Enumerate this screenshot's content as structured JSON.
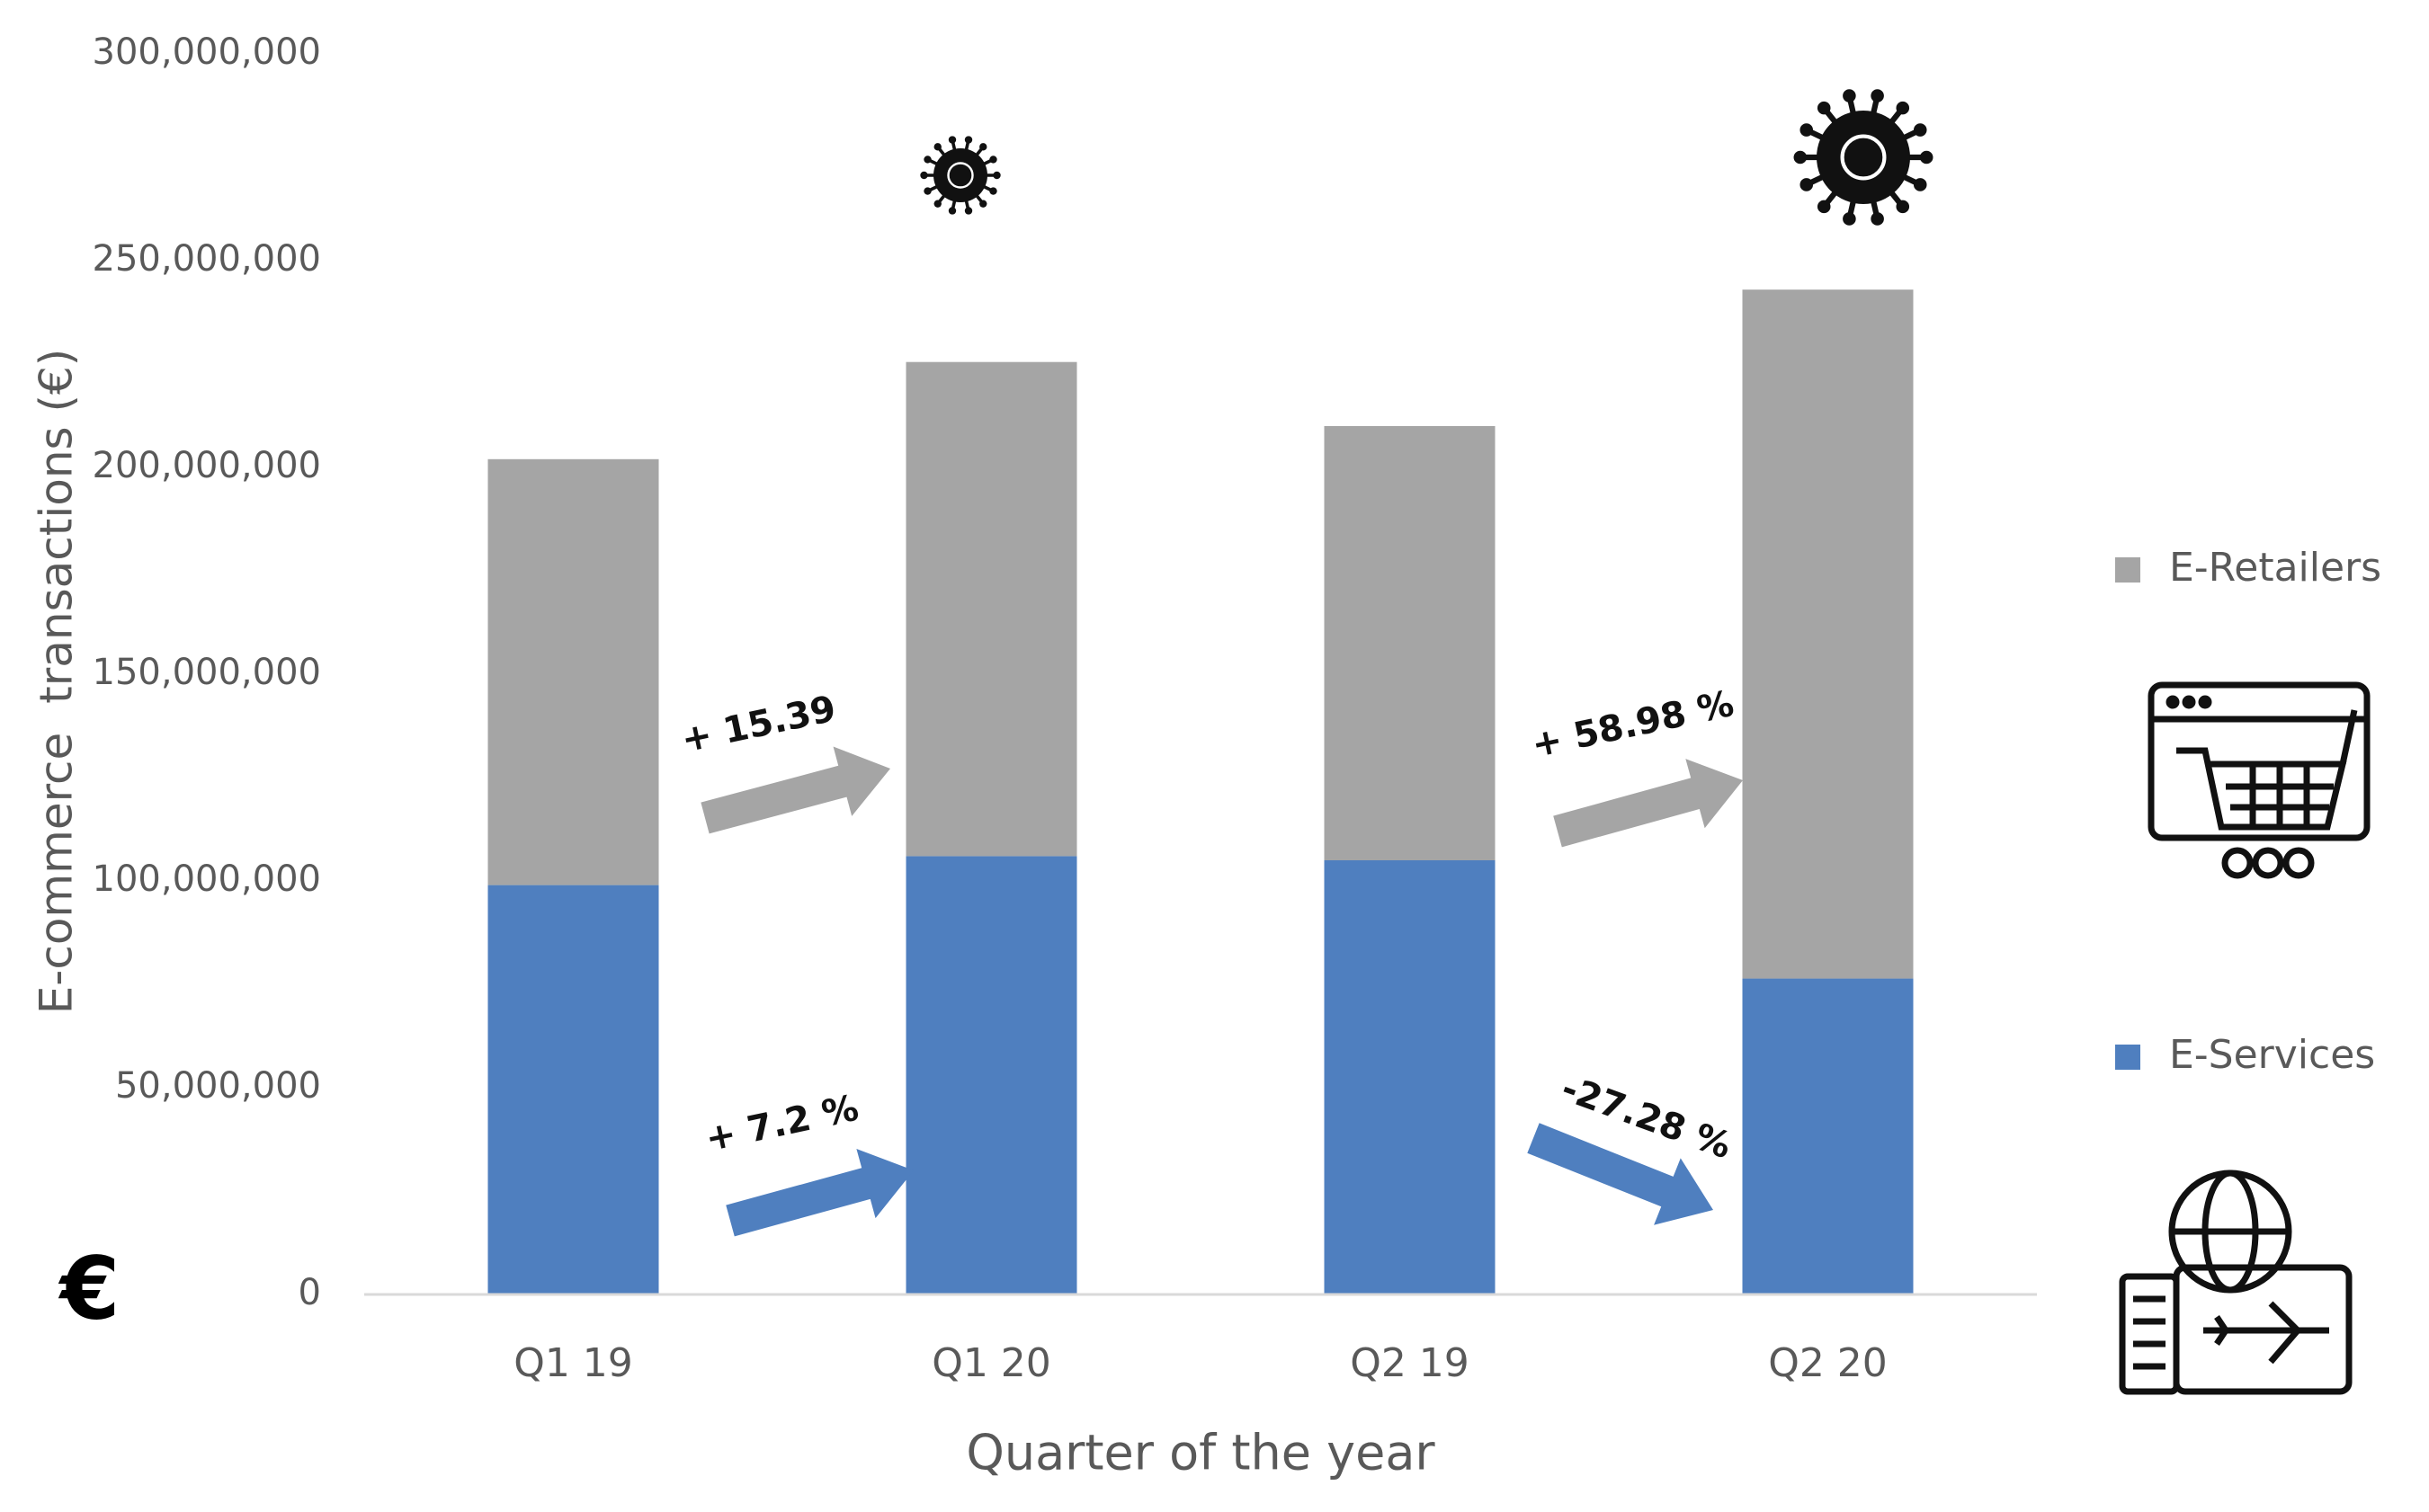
{
  "chart_data": {
    "type": "bar",
    "stacked": true,
    "x_label": "Quarter of the year",
    "y_label": "E-commerce  transactions (€)",
    "categories": [
      "Q1 19",
      "Q1 20",
      "Q2 19",
      "Q2 20"
    ],
    "series": [
      {
        "name": "E-Services",
        "color": "#4f7fbf",
        "values": [
          99000000,
          106000000,
          105000000,
          76400000
        ]
      },
      {
        "name": "E-Retailers",
        "color": "#a5a5a5",
        "values": [
          103000000,
          119500000,
          105000000,
          166600000
        ]
      }
    ],
    "ylim": [
      0,
      300000000
    ],
    "yticks": [
      0,
      {
        "value": 50000000,
        "label": "50,000,000"
      },
      {
        "value": 100000000,
        "label": "100,000,000"
      },
      {
        "value": 150000000,
        "label": "150,000,000"
      },
      {
        "value": 200000000,
        "label": "200,000,000"
      },
      {
        "value": 250000000,
        "label": "250,000,000"
      },
      {
        "value": 300000000,
        "label": "300,000,000"
      }
    ],
    "grid": false,
    "legend": "right",
    "annotations": [
      "+ 15.39",
      "+ 58.98 %",
      "+ 7.2 %",
      "-27.28 %"
    ],
    "currency_symbol": "€"
  }
}
